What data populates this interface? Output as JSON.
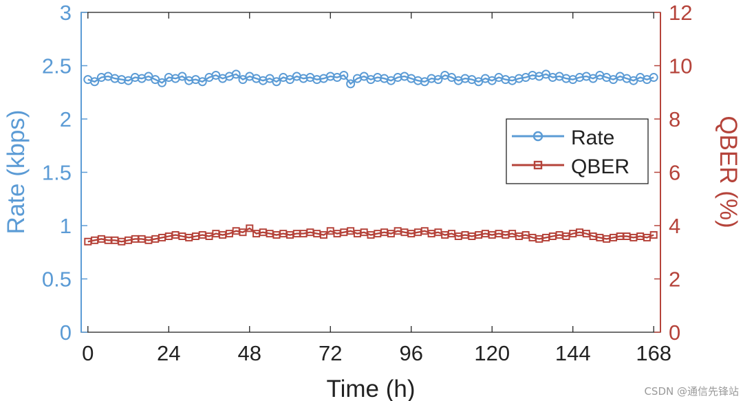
{
  "colors": {
    "rate": "#5b9bd5",
    "qber": "#b5433a",
    "axis": "#222222"
  },
  "chart_data": {
    "type": "line",
    "xlabel": "Time (h)",
    "xlim": [
      -2,
      170
    ],
    "xticks": [
      0,
      24,
      48,
      72,
      96,
      120,
      144,
      168
    ],
    "y_left": {
      "label": "Rate (kbps)",
      "lim": [
        0,
        3
      ],
      "ticks": [
        "0",
        "0.5",
        "1",
        "1.5",
        "2",
        "2.5",
        "3"
      ]
    },
    "y_right": {
      "label": "QBER (%)",
      "lim": [
        0,
        12
      ],
      "ticks": [
        "0",
        "2",
        "4",
        "6",
        "8",
        "10",
        "12"
      ]
    },
    "legend": {
      "placement": "right",
      "entries": [
        "Rate",
        "QBER"
      ]
    },
    "grid": false,
    "series": [
      {
        "name": "Rate",
        "axis": "left",
        "marker": "circle",
        "x": [
          0,
          2,
          4,
          6,
          8,
          10,
          12,
          14,
          16,
          18,
          20,
          22,
          24,
          26,
          28,
          30,
          32,
          34,
          36,
          38,
          40,
          42,
          44,
          46,
          48,
          50,
          52,
          54,
          56,
          58,
          60,
          62,
          64,
          66,
          68,
          70,
          72,
          74,
          76,
          78,
          80,
          82,
          84,
          86,
          88,
          90,
          92,
          94,
          96,
          98,
          100,
          102,
          104,
          106,
          108,
          110,
          112,
          114,
          116,
          118,
          120,
          122,
          124,
          126,
          128,
          130,
          132,
          134,
          136,
          138,
          140,
          142,
          144,
          146,
          148,
          150,
          152,
          154,
          156,
          158,
          160,
          162,
          164,
          166,
          168
        ],
        "y": [
          2.37,
          2.35,
          2.39,
          2.4,
          2.38,
          2.37,
          2.36,
          2.39,
          2.38,
          2.4,
          2.37,
          2.34,
          2.39,
          2.38,
          2.4,
          2.36,
          2.37,
          2.35,
          2.39,
          2.41,
          2.38,
          2.4,
          2.42,
          2.37,
          2.4,
          2.38,
          2.36,
          2.38,
          2.35,
          2.39,
          2.37,
          2.4,
          2.38,
          2.39,
          2.37,
          2.38,
          2.4,
          2.39,
          2.41,
          2.33,
          2.38,
          2.4,
          2.37,
          2.39,
          2.38,
          2.36,
          2.39,
          2.4,
          2.38,
          2.36,
          2.35,
          2.38,
          2.37,
          2.41,
          2.39,
          2.36,
          2.38,
          2.37,
          2.35,
          2.38,
          2.36,
          2.39,
          2.37,
          2.36,
          2.38,
          2.39,
          2.41,
          2.4,
          2.42,
          2.39,
          2.4,
          2.38,
          2.37,
          2.39,
          2.4,
          2.38,
          2.41,
          2.39,
          2.37,
          2.4,
          2.38,
          2.36,
          2.39,
          2.37,
          2.39
        ]
      },
      {
        "name": "QBER",
        "axis": "right",
        "marker": "square",
        "x": [
          0,
          2,
          4,
          6,
          8,
          10,
          12,
          14,
          16,
          18,
          20,
          22,
          24,
          26,
          28,
          30,
          32,
          34,
          36,
          38,
          40,
          42,
          44,
          46,
          48,
          50,
          52,
          54,
          56,
          58,
          60,
          62,
          64,
          66,
          68,
          70,
          72,
          74,
          76,
          78,
          80,
          82,
          84,
          86,
          88,
          90,
          92,
          94,
          96,
          98,
          100,
          102,
          104,
          106,
          108,
          110,
          112,
          114,
          116,
          118,
          120,
          122,
          124,
          126,
          128,
          130,
          132,
          134,
          136,
          138,
          140,
          142,
          144,
          146,
          148,
          150,
          152,
          154,
          156,
          158,
          160,
          162,
          164,
          166,
          168
        ],
        "y": [
          3.4,
          3.45,
          3.5,
          3.45,
          3.45,
          3.4,
          3.45,
          3.5,
          3.5,
          3.45,
          3.5,
          3.55,
          3.6,
          3.65,
          3.6,
          3.55,
          3.6,
          3.65,
          3.6,
          3.7,
          3.65,
          3.7,
          3.8,
          3.75,
          3.9,
          3.7,
          3.75,
          3.7,
          3.65,
          3.7,
          3.65,
          3.7,
          3.7,
          3.75,
          3.7,
          3.65,
          3.8,
          3.7,
          3.75,
          3.8,
          3.7,
          3.75,
          3.65,
          3.7,
          3.75,
          3.7,
          3.8,
          3.75,
          3.7,
          3.75,
          3.8,
          3.7,
          3.75,
          3.65,
          3.7,
          3.6,
          3.65,
          3.6,
          3.65,
          3.7,
          3.65,
          3.7,
          3.65,
          3.7,
          3.6,
          3.65,
          3.55,
          3.5,
          3.55,
          3.6,
          3.65,
          3.6,
          3.7,
          3.75,
          3.7,
          3.6,
          3.55,
          3.5,
          3.55,
          3.6,
          3.6,
          3.55,
          3.6,
          3.55,
          3.65
        ]
      }
    ]
  },
  "watermark": "CSDN @通信先锋站"
}
